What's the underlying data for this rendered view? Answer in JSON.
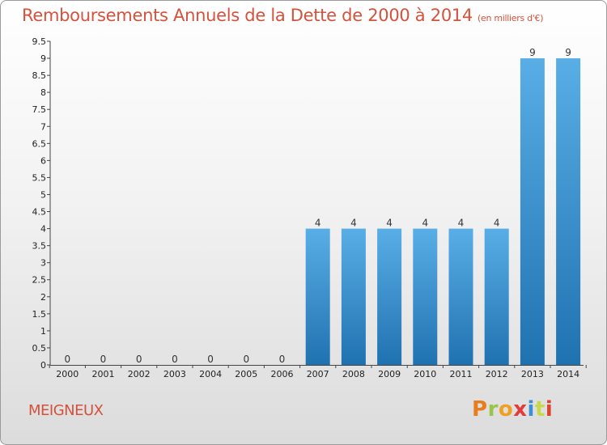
{
  "title": "Remboursements Annuels de la Dette de 2000 à 2014",
  "unit": "(en milliers d'€)",
  "commune": "MEIGNEUX",
  "logo": [
    "P",
    "r",
    "o",
    "x",
    "i",
    "t",
    "i"
  ],
  "colors": {
    "title": "#d4523c",
    "bar_top": "#5aaee6",
    "bar_bottom": "#1f72b0"
  },
  "chart_data": {
    "type": "bar",
    "title": "Remboursements Annuels de la Dette de 2000 à 2014",
    "subtitle": "(en milliers d'€)",
    "categories": [
      "2000",
      "2001",
      "2002",
      "2003",
      "2004",
      "2005",
      "2006",
      "2007",
      "2008",
      "2009",
      "2010",
      "2011",
      "2012",
      "2013",
      "2014"
    ],
    "values": [
      0,
      0,
      0,
      0,
      0,
      0,
      0,
      4,
      4,
      4,
      4,
      4,
      4,
      9,
      9
    ],
    "value_labels": [
      "0",
      "0",
      "0",
      "0",
      "0",
      "0",
      "0",
      "4",
      "4",
      "4",
      "4",
      "4",
      "4",
      "9",
      "9"
    ],
    "ylim": [
      0,
      9.5
    ],
    "yticks": [
      0,
      0.5,
      1,
      1.5,
      2,
      2.5,
      3,
      3.5,
      4,
      4.5,
      5,
      5.5,
      6,
      6.5,
      7,
      7.5,
      8,
      8.5,
      9,
      9.5
    ],
    "ytick_labels": [
      "0",
      "0.5",
      "1",
      "1.5",
      "2",
      "2.5",
      "3",
      "3.5",
      "4",
      "4.5",
      "5",
      "5.5",
      "6",
      "6.5",
      "7",
      "7.5",
      "8",
      "8.5",
      "9",
      "9.5"
    ],
    "grid": false,
    "xlabel": "",
    "ylabel": ""
  }
}
